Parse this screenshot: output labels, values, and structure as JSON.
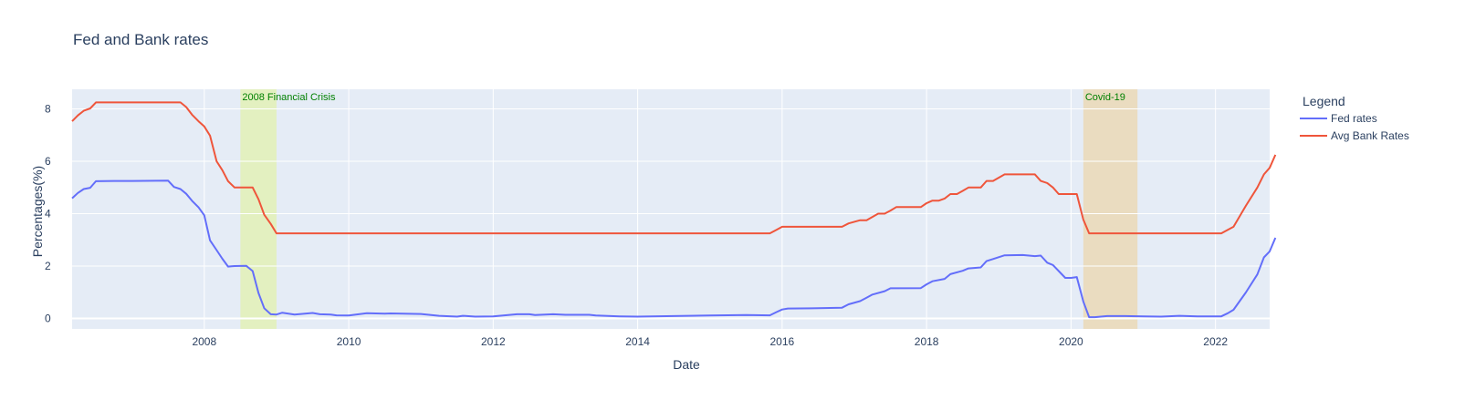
{
  "chart_data": {
    "type": "line",
    "title": "Fed and Bank rates",
    "xlabel": "Date",
    "ylabel": "Percentages(%)",
    "xlim": [
      2006.17,
      2022.75
    ],
    "ylim": [
      -0.4,
      8.75
    ],
    "x_ticks": [
      2008,
      2010,
      2012,
      2014,
      2016,
      2018,
      2020,
      2022
    ],
    "y_ticks": [
      0,
      2,
      4,
      6,
      8
    ],
    "grid": true,
    "legend": {
      "title": "Legend",
      "placement": "right"
    },
    "annotations": [
      {
        "label": "2008 Financial Crisis",
        "x_start": 2008.5,
        "x_end": 2009.0,
        "fill": "#e0ff00",
        "text_color": "#008000"
      },
      {
        "label": "Covid-19",
        "x_start": 2020.17,
        "x_end": 2020.92,
        "fill": "#ffa500",
        "text_color": "#008000"
      }
    ],
    "series": [
      {
        "name": "Fed rates",
        "color": "#636efa",
        "points": [
          [
            2006.17,
            4.59
          ],
          [
            2006.25,
            4.79
          ],
          [
            2006.33,
            4.94
          ],
          [
            2006.42,
            4.99
          ],
          [
            2006.5,
            5.24
          ],
          [
            2006.75,
            5.25
          ],
          [
            2007.0,
            5.25
          ],
          [
            2007.5,
            5.26
          ],
          [
            2007.58,
            5.02
          ],
          [
            2007.67,
            4.94
          ],
          [
            2007.75,
            4.76
          ],
          [
            2007.83,
            4.49
          ],
          [
            2007.92,
            4.24
          ],
          [
            2008.0,
            3.94
          ],
          [
            2008.08,
            2.98
          ],
          [
            2008.17,
            2.61
          ],
          [
            2008.25,
            2.28
          ],
          [
            2008.33,
            1.98
          ],
          [
            2008.42,
            2.0
          ],
          [
            2008.58,
            2.01
          ],
          [
            2008.67,
            1.81
          ],
          [
            2008.75,
            0.97
          ],
          [
            2008.83,
            0.39
          ],
          [
            2008.92,
            0.16
          ],
          [
            2009.0,
            0.15
          ],
          [
            2009.08,
            0.22
          ],
          [
            2009.25,
            0.15
          ],
          [
            2009.5,
            0.21
          ],
          [
            2009.6,
            0.16
          ],
          [
            2009.75,
            0.15
          ],
          [
            2009.83,
            0.12
          ],
          [
            2010.0,
            0.11
          ],
          [
            2010.25,
            0.2
          ],
          [
            2010.5,
            0.18
          ],
          [
            2010.58,
            0.19
          ],
          [
            2011.0,
            0.17
          ],
          [
            2011.25,
            0.1
          ],
          [
            2011.5,
            0.07
          ],
          [
            2011.58,
            0.1
          ],
          [
            2011.75,
            0.07
          ],
          [
            2012.0,
            0.08
          ],
          [
            2012.33,
            0.16
          ],
          [
            2012.5,
            0.16
          ],
          [
            2012.58,
            0.13
          ],
          [
            2012.83,
            0.16
          ],
          [
            2013.0,
            0.14
          ],
          [
            2013.33,
            0.14
          ],
          [
            2013.42,
            0.11
          ],
          [
            2013.75,
            0.08
          ],
          [
            2014.0,
            0.07
          ],
          [
            2014.5,
            0.09
          ],
          [
            2015.0,
            0.11
          ],
          [
            2015.5,
            0.13
          ],
          [
            2015.83,
            0.12
          ],
          [
            2015.92,
            0.24
          ],
          [
            2016.0,
            0.34
          ],
          [
            2016.08,
            0.38
          ],
          [
            2016.5,
            0.39
          ],
          [
            2016.83,
            0.41
          ],
          [
            2016.92,
            0.54
          ],
          [
            2017.08,
            0.66
          ],
          [
            2017.17,
            0.79
          ],
          [
            2017.25,
            0.91
          ],
          [
            2017.42,
            1.04
          ],
          [
            2017.5,
            1.15
          ],
          [
            2017.92,
            1.16
          ],
          [
            2018.0,
            1.3
          ],
          [
            2018.08,
            1.42
          ],
          [
            2018.25,
            1.51
          ],
          [
            2018.33,
            1.69
          ],
          [
            2018.5,
            1.82
          ],
          [
            2018.58,
            1.91
          ],
          [
            2018.75,
            1.95
          ],
          [
            2018.83,
            2.19
          ],
          [
            2018.92,
            2.27
          ],
          [
            2019.08,
            2.41
          ],
          [
            2019.33,
            2.42
          ],
          [
            2019.5,
            2.38
          ],
          [
            2019.58,
            2.4
          ],
          [
            2019.67,
            2.13
          ],
          [
            2019.75,
            2.04
          ],
          [
            2019.92,
            1.55
          ],
          [
            2020.0,
            1.55
          ],
          [
            2020.08,
            1.58
          ],
          [
            2020.17,
            0.65
          ],
          [
            2020.25,
            0.05
          ],
          [
            2020.33,
            0.05
          ],
          [
            2020.5,
            0.09
          ],
          [
            2020.75,
            0.09
          ],
          [
            2021.0,
            0.08
          ],
          [
            2021.25,
            0.07
          ],
          [
            2021.5,
            0.1
          ],
          [
            2021.75,
            0.08
          ],
          [
            2022.08,
            0.08
          ],
          [
            2022.17,
            0.2
          ],
          [
            2022.25,
            0.33
          ],
          [
            2022.42,
            0.99
          ],
          [
            2022.58,
            1.68
          ],
          [
            2022.67,
            2.33
          ],
          [
            2022.75,
            2.56
          ],
          [
            2022.83,
            3.08
          ]
        ]
      },
      {
        "name": "Avg Bank Rates",
        "color": "#ef553b",
        "points": [
          [
            2006.17,
            7.53
          ],
          [
            2006.25,
            7.75
          ],
          [
            2006.33,
            7.93
          ],
          [
            2006.42,
            8.02
          ],
          [
            2006.5,
            8.25
          ],
          [
            2007.0,
            8.25
          ],
          [
            2007.5,
            8.25
          ],
          [
            2007.67,
            8.25
          ],
          [
            2007.75,
            8.07
          ],
          [
            2007.83,
            7.78
          ],
          [
            2007.92,
            7.53
          ],
          [
            2008.0,
            7.33
          ],
          [
            2008.08,
            6.98
          ],
          [
            2008.17,
            6.0
          ],
          [
            2008.25,
            5.66
          ],
          [
            2008.33,
            5.24
          ],
          [
            2008.42,
            5.0
          ],
          [
            2008.58,
            5.0
          ],
          [
            2008.67,
            5.0
          ],
          [
            2008.75,
            4.55
          ],
          [
            2008.83,
            3.96
          ],
          [
            2008.92,
            3.61
          ],
          [
            2009.0,
            3.25
          ],
          [
            2010.0,
            3.25
          ],
          [
            2011.0,
            3.25
          ],
          [
            2012.0,
            3.25
          ],
          [
            2013.0,
            3.25
          ],
          [
            2014.0,
            3.25
          ],
          [
            2015.0,
            3.25
          ],
          [
            2015.83,
            3.25
          ],
          [
            2015.92,
            3.38
          ],
          [
            2016.0,
            3.5
          ],
          [
            2016.5,
            3.5
          ],
          [
            2016.83,
            3.5
          ],
          [
            2016.92,
            3.63
          ],
          [
            2017.08,
            3.75
          ],
          [
            2017.17,
            3.75
          ],
          [
            2017.33,
            4.0
          ],
          [
            2017.42,
            4.0
          ],
          [
            2017.5,
            4.12
          ],
          [
            2017.58,
            4.25
          ],
          [
            2017.92,
            4.25
          ],
          [
            2018.0,
            4.4
          ],
          [
            2018.08,
            4.5
          ],
          [
            2018.17,
            4.5
          ],
          [
            2018.25,
            4.58
          ],
          [
            2018.33,
            4.75
          ],
          [
            2018.42,
            4.75
          ],
          [
            2018.5,
            4.87
          ],
          [
            2018.58,
            5.0
          ],
          [
            2018.75,
            5.0
          ],
          [
            2018.83,
            5.25
          ],
          [
            2018.92,
            5.25
          ],
          [
            2019.08,
            5.5
          ],
          [
            2019.5,
            5.5
          ],
          [
            2019.58,
            5.25
          ],
          [
            2019.67,
            5.17
          ],
          [
            2019.75,
            5.0
          ],
          [
            2019.83,
            4.75
          ],
          [
            2020.08,
            4.75
          ],
          [
            2020.17,
            3.78
          ],
          [
            2020.25,
            3.25
          ],
          [
            2020.5,
            3.25
          ],
          [
            2021.0,
            3.25
          ],
          [
            2021.5,
            3.25
          ],
          [
            2022.0,
            3.25
          ],
          [
            2022.08,
            3.25
          ],
          [
            2022.25,
            3.5
          ],
          [
            2022.42,
            4.3
          ],
          [
            2022.58,
            5.0
          ],
          [
            2022.67,
            5.5
          ],
          [
            2022.75,
            5.75
          ],
          [
            2022.83,
            6.25
          ]
        ]
      }
    ]
  }
}
